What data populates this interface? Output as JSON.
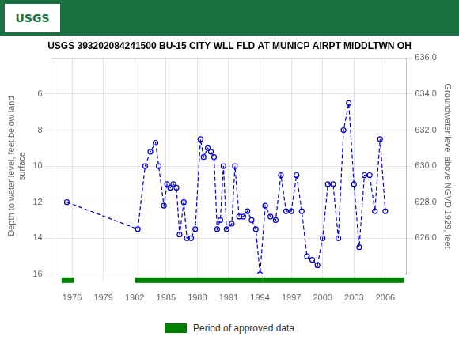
{
  "chart_data": {
    "type": "line",
    "title": "USGS 393202084241500 BU-15 CITY WLL FLD AT MUNICP AIRPT MIDDLTWN OH",
    "y_label": "Depth to water level, feet below land\nsurface",
    "y2_label": "Groundwater level above NGVD 1929, feet",
    "xlim": [
      1974.0,
      2008.0
    ],
    "xticks": [
      1976,
      1979,
      1982,
      1985,
      1988,
      1991,
      1994,
      1997,
      2000,
      2003,
      2006
    ],
    "ylim": [
      16.0,
      4.0
    ],
    "yticks": [
      6,
      8,
      10,
      12,
      14,
      16
    ],
    "y2lim": [
      624.0,
      636.0
    ],
    "y2ticks": [
      {
        "value": 626,
        "label": "626.0"
      },
      {
        "value": 628,
        "label": "628.0"
      },
      {
        "value": 630,
        "label": "630.0"
      },
      {
        "value": 632,
        "label": "632.0"
      },
      {
        "value": 634,
        "label": "634.0"
      },
      {
        "value": 636,
        "label": "636.0"
      }
    ],
    "grid": true,
    "x": [
      1975.5,
      1982.3,
      1983.0,
      1983.5,
      1984.0,
      1984.3,
      1984.8,
      1985.1,
      1985.4,
      1985.7,
      1986.0,
      1986.3,
      1986.7,
      1987.0,
      1987.4,
      1987.8,
      1988.3,
      1988.6,
      1989.0,
      1989.3,
      1989.6,
      1989.9,
      1990.2,
      1990.5,
      1990.8,
      1991.3,
      1991.6,
      1992.0,
      1992.4,
      1992.8,
      1993.2,
      1993.6,
      1994.0,
      1994.5,
      1995.0,
      1995.5,
      1996.0,
      1996.5,
      1997.0,
      1997.5,
      1998.0,
      1998.5,
      1999.0,
      1999.5,
      2000.0,
      2000.5,
      2001.0,
      2001.5,
      2002.0,
      2002.5,
      2003.0,
      2003.5,
      2004.0,
      2004.5,
      2005.0,
      2005.5,
      2006.0
    ],
    "series": [
      {
        "color": "#0000cc",
        "marker": "circle",
        "line_style": "dashed",
        "values": [
          12.0,
          13.5,
          10.0,
          9.2,
          8.7,
          10.0,
          12.2,
          11.0,
          11.2,
          11.0,
          11.2,
          13.8,
          12.0,
          14.0,
          14.0,
          13.5,
          8.5,
          9.5,
          9.0,
          9.2,
          9.5,
          13.5,
          13.0,
          10.0,
          13.5,
          13.2,
          10.0,
          12.8,
          12.8,
          12.5,
          13.0,
          13.5,
          16.0,
          12.2,
          12.8,
          13.0,
          10.5,
          12.5,
          12.5,
          10.5,
          12.5,
          15.0,
          15.2,
          15.5,
          14.0,
          11.0,
          11.0,
          14.0,
          8.0,
          6.5,
          11.0,
          14.5,
          10.5,
          10.5,
          12.5,
          8.5,
          12.5
        ]
      },
      {
        "name": "Period of approved data",
        "type": "span",
        "color": "#008000",
        "ranges": [
          [
            1975.0,
            1976.2
          ],
          [
            1982.0,
            1994.2
          ],
          [
            1994.2,
            2007.8
          ]
        ]
      }
    ],
    "annotations": [
      {
        "text": "USGS",
        "color": "#1a7040"
      }
    ]
  }
}
